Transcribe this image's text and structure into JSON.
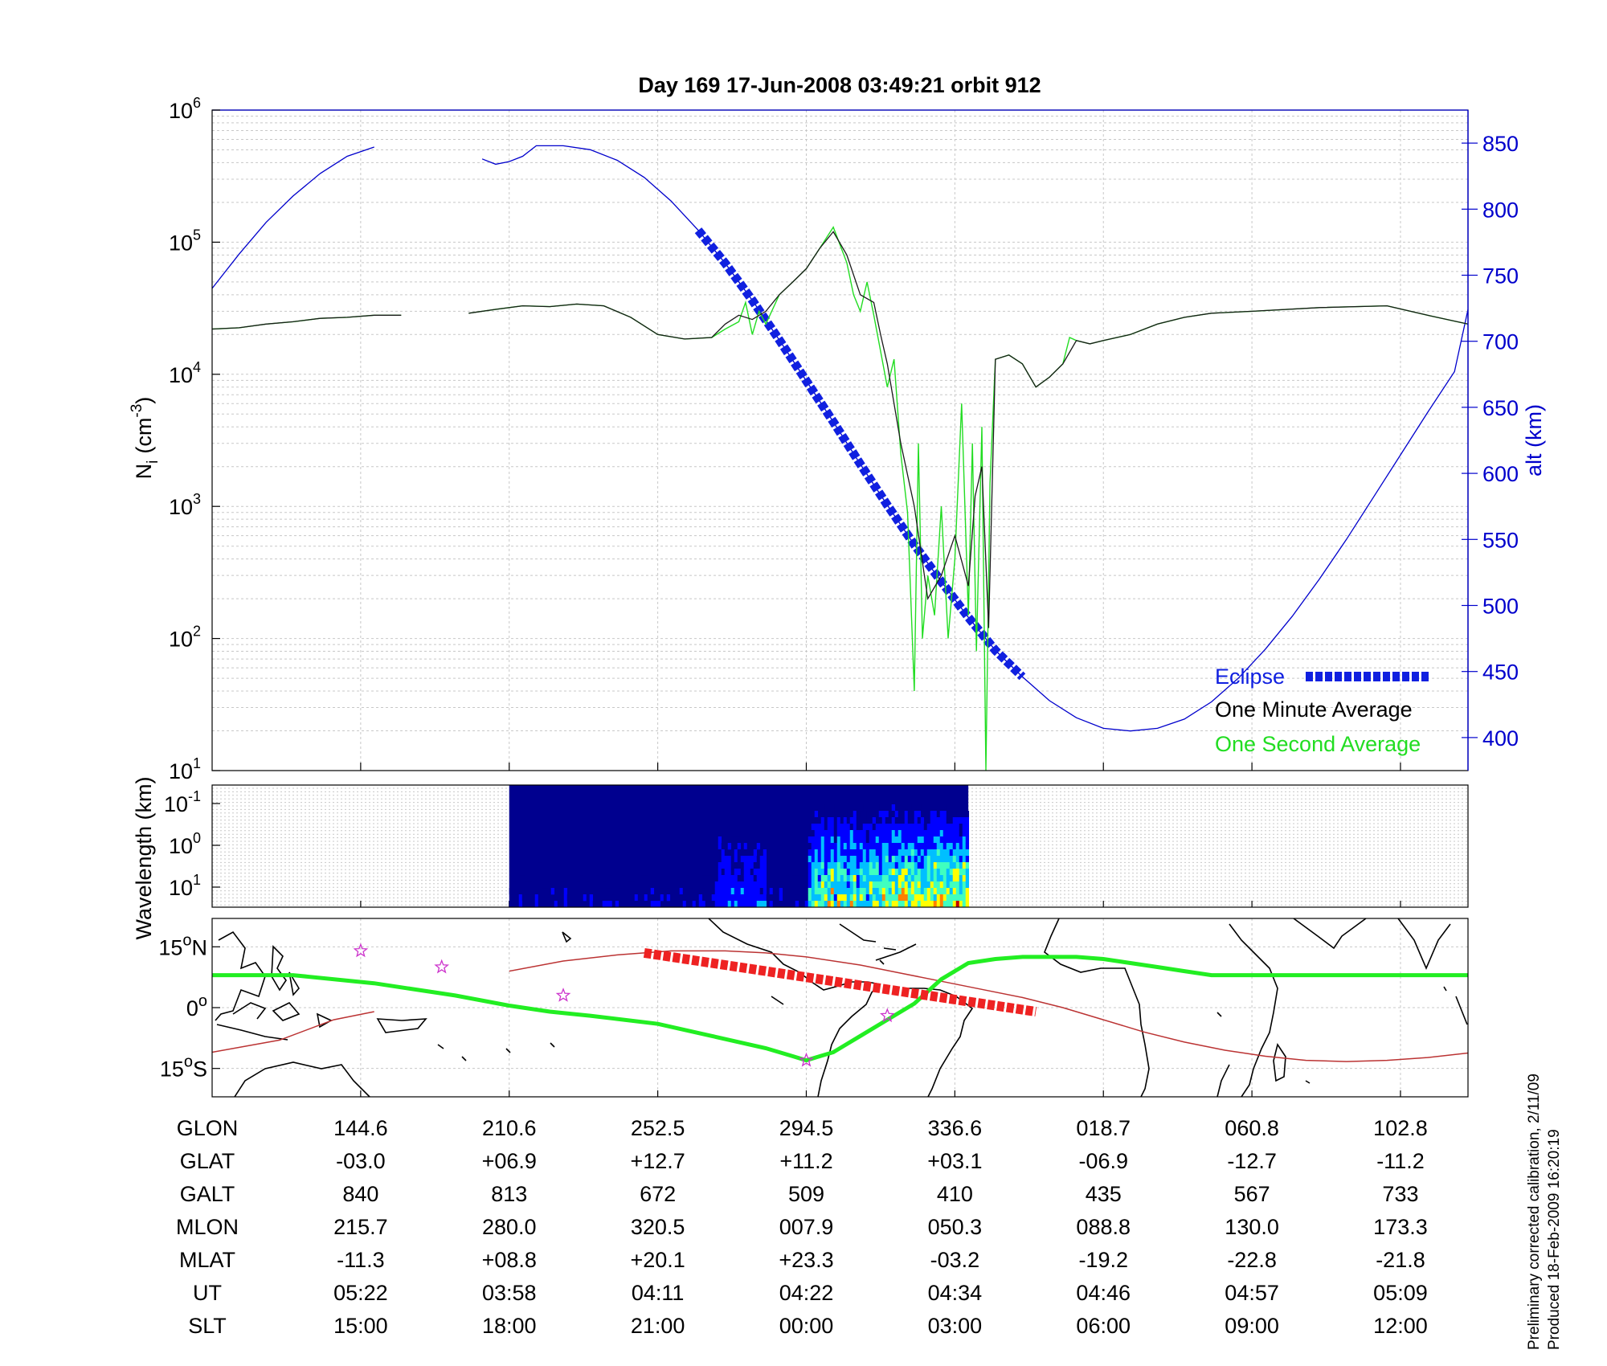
{
  "title": "Day 169  17-Jun-2008 03:49:21   orbit 912",
  "colors": {
    "axis": "#000000",
    "grid": "#c8c8c8",
    "altitude": "#0000cc",
    "eclipse": "#1020e0",
    "one_minute": "#1a1a1a",
    "one_second": "#22dd22",
    "track": "#22ee22",
    "track_eclipse": "#ee2222",
    "magnetic_equator": "#bb3333",
    "star": "#cc33cc"
  },
  "chart_data": [
    {
      "type": "line",
      "name": "ion-density-panel",
      "ylabel": "N_i (cm^-3)",
      "ylabel_main": "N",
      "ylabel_sub": "i",
      "ylabel_rest": "(cm",
      "ylabel_sup": "-3",
      "ylabel_close": ")",
      "yscale": "log",
      "ylim": [
        10,
        1000000
      ],
      "y_ticks": [
        {
          "base": "10",
          "exp": "1"
        },
        {
          "base": "10",
          "exp": "2"
        },
        {
          "base": "10",
          "exp": "3"
        },
        {
          "base": "10",
          "exp": "4"
        },
        {
          "base": "10",
          "exp": "5"
        },
        {
          "base": "10",
          "exp": "6"
        }
      ],
      "y2label": "alt (km)",
      "y2lim": [
        375,
        875
      ],
      "y2_ticks": [
        "400",
        "450",
        "500",
        "550",
        "600",
        "650",
        "700",
        "750",
        "800",
        "850"
      ],
      "x_units": "UT minutes after 03:58",
      "xlim": [
        -22,
        71
      ],
      "legend": {
        "position": "bottom-right",
        "entries": [
          "Eclipse",
          "One Minute Average",
          "One Second Average"
        ]
      },
      "series": [
        {
          "name": "alt (km)",
          "gaps_at": [
            [
              14,
              16
            ]
          ],
          "x": [
            -22,
            -20,
            -18,
            -16,
            -14,
            -12,
            -10,
            -8,
            -6,
            -4,
            -3,
            -2,
            -1,
            0,
            1,
            2,
            4,
            6,
            8,
            10,
            12,
            14,
            16,
            18,
            20,
            22,
            24,
            26,
            28,
            30,
            32,
            34,
            36,
            38,
            40,
            42,
            44,
            46,
            48,
            50,
            52,
            54,
            56,
            58,
            60,
            62,
            64,
            66,
            68,
            70,
            71
          ],
          "y": [
            740,
            766,
            790,
            810,
            827,
            840,
            847,
            850,
            848,
            845,
            842,
            838,
            834,
            836,
            840,
            848,
            848,
            845,
            837,
            824,
            806,
            784,
            759,
            731,
            701,
            670,
            639,
            607,
            576,
            546,
            518,
            491,
            466,
            446,
            428,
            415,
            407,
            405,
            407,
            414,
            427,
            445,
            467,
            492,
            520,
            550,
            582,
            614,
            646,
            677,
            724
          ]
        },
        {
          "name": "Eclipse",
          "x": [
            14,
            38
          ],
          "note": "drawn over altitude curve between these times"
        },
        {
          "name": "One Minute Average",
          "gaps_at": [
            [
              -8,
              -3
            ]
          ],
          "x": [
            -22,
            -20,
            -18,
            -16,
            -14,
            -12,
            -10,
            -8,
            -3,
            -1,
            1,
            3,
            5,
            7,
            9,
            11,
            13,
            15,
            16,
            17,
            18,
            19,
            20,
            21,
            22,
            23,
            24,
            25,
            26,
            27,
            27.5,
            28,
            29,
            30,
            31,
            32,
            33,
            34,
            34.5,
            35,
            35.5,
            36,
            37,
            38,
            39,
            40,
            41,
            42,
            43,
            44,
            46,
            48,
            50,
            52,
            55,
            60,
            65,
            68,
            71
          ],
          "y": [
            22000,
            22500,
            24000,
            25000,
            26500,
            27000,
            28000,
            28000,
            29000,
            31000,
            33000,
            32500,
            34000,
            33000,
            27000,
            20000,
            18500,
            19000,
            24000,
            28000,
            26000,
            30000,
            40000,
            50000,
            63000,
            90000,
            120000,
            80000,
            40000,
            35000,
            20000,
            12000,
            3000,
            1000,
            200,
            300,
            600,
            250,
            1200,
            2000,
            120,
            13000,
            14000,
            12000,
            8000,
            9500,
            12000,
            18000,
            17000,
            18000,
            20000,
            24000,
            27000,
            29000,
            30000,
            32000,
            33000,
            28000,
            24000
          ]
        },
        {
          "name": "One Second Average",
          "x": [
            -22,
            -20,
            -18,
            -16,
            -14,
            -12,
            -10,
            -8,
            -3,
            -1,
            1,
            3,
            5,
            7,
            9,
            11,
            13,
            15,
            16,
            17,
            17.5,
            18,
            18.5,
            19,
            20,
            21,
            22,
            23,
            24,
            25,
            25.5,
            26,
            26.5,
            27,
            27.5,
            28,
            28.5,
            29,
            29.5,
            30,
            30.3,
            30.6,
            31,
            31.5,
            32,
            32.5,
            33,
            33.5,
            34,
            34.3,
            34.6,
            35,
            35.3,
            35.6,
            36,
            37,
            38,
            39,
            40,
            41,
            41.5,
            42,
            43,
            44,
            46,
            48,
            50,
            52,
            55,
            60,
            65,
            68,
            71
          ],
          "y": [
            22000,
            22500,
            24000,
            25000,
            26500,
            27000,
            28000,
            28000,
            29000,
            31000,
            33000,
            32500,
            34000,
            33000,
            27000,
            20000,
            18500,
            19000,
            22000,
            25000,
            35000,
            20000,
            30000,
            24000,
            40000,
            50000,
            63000,
            90000,
            130000,
            70000,
            40000,
            30000,
            50000,
            28000,
            15000,
            8000,
            13000,
            2500,
            900,
            40,
            3000,
            100,
            300,
            150,
            1000,
            100,
            400,
            6000,
            150,
            3000,
            80,
            4000,
            10,
            1500,
            13000,
            14000,
            12000,
            8000,
            9500,
            12000,
            19000,
            18000,
            17000,
            18000,
            20000,
            24000,
            27000,
            29000,
            30000,
            32000,
            33000,
            28000,
            24000
          ]
        }
      ]
    },
    {
      "type": "heatmap",
      "name": "wavelength-spectrogram",
      "ylabel": "Wavelength (km)",
      "yscale": "log",
      "y_ticks": [
        {
          "base": "10",
          "exp": "-1"
        },
        {
          "base": "10",
          "exp": "0"
        },
        {
          "base": "10",
          "exp": "1"
        }
      ],
      "data_window": [
        0,
        34
      ],
      "colormap": [
        "#00008f",
        "#0000ff",
        "#00bfff",
        "#40ffbf",
        "#ffff00",
        "#ff8000",
        "#c00000"
      ]
    },
    {
      "type": "map",
      "name": "ground-track-map",
      "y_ticks": [
        {
          "value": "15",
          "hemi": "N"
        },
        {
          "value": "0",
          "hemi": ""
        },
        {
          "value": "15",
          "hemi": "S"
        }
      ],
      "ground_track": {
        "name": "satellite ground track (GLAT)",
        "x": [
          -22,
          -16,
          -10,
          -4,
          0,
          3,
          6,
          11,
          15,
          19,
          21,
          22,
          23,
          24,
          25,
          26,
          28,
          30,
          32,
          34,
          36,
          38,
          40,
          42,
          44,
          46,
          48,
          50,
          52,
          55,
          58,
          60,
          62,
          65,
          68,
          71
        ],
        "y": [
          8,
          8,
          6,
          3,
          0.5,
          -1,
          -2,
          -4,
          -7,
          -10,
          -12,
          -13,
          -12,
          -11,
          -9,
          -7,
          -3,
          1,
          7,
          11,
          12,
          12.5,
          12.5,
          12.5,
          12,
          11,
          10,
          9,
          8,
          8,
          8,
          8,
          8,
          8,
          8,
          8
        ]
      },
      "eclipse_on_track": {
        "x": [
          10,
          39
        ],
        "y_start": 13.5,
        "y_end": -1
      },
      "magnetic_equator": {
        "x": [
          -22,
          -17,
          -13,
          -10,
          -8,
          -6,
          -3,
          0,
          4,
          8,
          12,
          16,
          19,
          22,
          26,
          29,
          32,
          35,
          38,
          41,
          44,
          47,
          50,
          53,
          56,
          59,
          62,
          65,
          68,
          71
        ],
        "y": [
          -11,
          -8,
          -3,
          -1,
          0,
          3,
          6,
          9,
          11.5,
          13,
          14,
          14,
          13.5,
          12.5,
          10.5,
          8.5,
          6.5,
          4.5,
          2.5,
          0,
          -3,
          -6,
          -8.5,
          -10.5,
          -12,
          -13,
          -13.3,
          -13,
          -12.3,
          -11.2
        ]
      },
      "stars": [
        {
          "x": -11,
          "y": 14
        },
        {
          "x": -5,
          "y": 10
        },
        {
          "x": 4,
          "y": 3
        },
        {
          "x": 22,
          "y": -13
        },
        {
          "x": 28,
          "y": -2
        }
      ]
    }
  ],
  "table": {
    "row_labels": [
      "GLON",
      "GLAT",
      "GALT",
      "MLON",
      "MLAT",
      "UT",
      "SLT"
    ],
    "columns": [
      {
        "x": -11,
        "values": [
          "144.6",
          "-03.0",
          "840",
          "215.7",
          "-11.3",
          "05:22",
          "15:00"
        ]
      },
      {
        "x": 0,
        "values": [
          "210.6",
          "+06.9",
          "813",
          "280.0",
          "+08.8",
          "03:58",
          "18:00"
        ]
      },
      {
        "x": 11,
        "values": [
          "252.5",
          "+12.7",
          "672",
          "320.5",
          "+20.1",
          "04:11",
          "21:00"
        ]
      },
      {
        "x": 22,
        "values": [
          "294.5",
          "+11.2",
          "509",
          "007.9",
          "+23.3",
          "04:22",
          "00:00"
        ]
      },
      {
        "x": 33,
        "values": [
          "336.6",
          "+03.1",
          "410",
          "050.3",
          "-03.2",
          "04:34",
          "03:00"
        ]
      },
      {
        "x": 44,
        "values": [
          "018.7",
          "-06.9",
          "435",
          "088.8",
          "-19.2",
          "04:46",
          "06:00"
        ]
      },
      {
        "x": 55,
        "values": [
          "060.8",
          "-12.7",
          "567",
          "130.0",
          "-22.8",
          "04:57",
          "09:00"
        ]
      },
      {
        "x": 66,
        "values": [
          "102.8",
          "-11.2",
          "733",
          "173.3",
          "-21.8",
          "05:09",
          "12:00"
        ]
      }
    ]
  },
  "footnote": {
    "line1": "Preliminary corrected calibration, 2/11/09",
    "line2": "Produced 18-Feb-2009 16:20:19"
  }
}
